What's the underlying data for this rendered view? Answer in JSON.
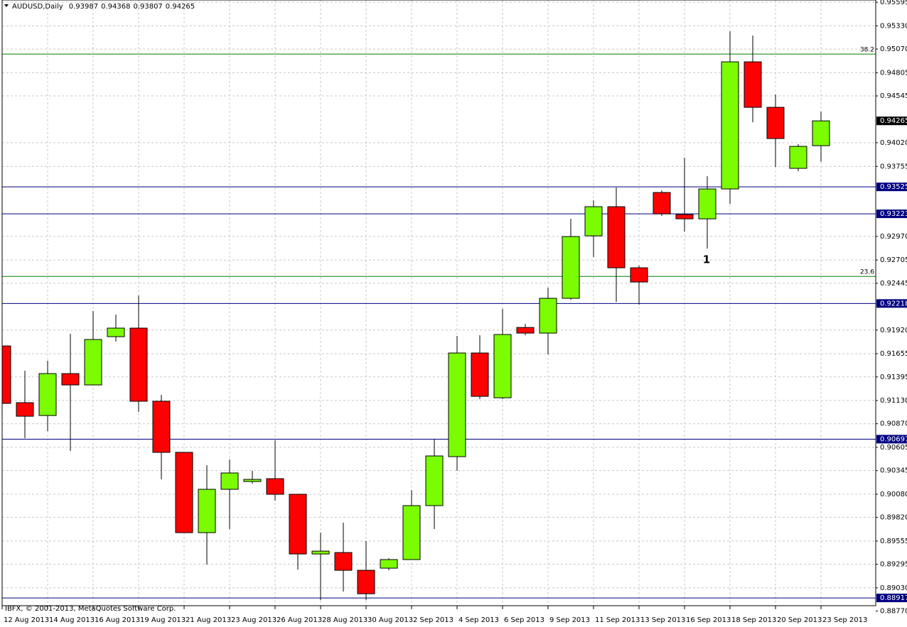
{
  "chart_data": {
    "type": "candlestick",
    "title": "AUDUSD,Daily",
    "header_values": [
      0.93987,
      0.94368,
      0.93807,
      0.94265
    ],
    "source": "IBFX, © 2001-2013, MetaQuotes Software Corp.",
    "annotation": "1",
    "categories": [
      "12 Aug 2013",
      null,
      "14 Aug 2013",
      null,
      "16 Aug 2013",
      null,
      "19 Aug 2013",
      null,
      "21 Aug 2013",
      null,
      "23 Aug 2013",
      null,
      "26 Aug 2013",
      null,
      "28 Aug 2013",
      null,
      "30 Aug 2013",
      null,
      "2 Sep 2013",
      null,
      "4 Sep 2013",
      null,
      "6 Sep 2013",
      null,
      "9 Sep 2013",
      null,
      "11 Sep 2013",
      null,
      "13 Sep 2013",
      null,
      "16 Sep 2013",
      null,
      "18 Sep 2013",
      null,
      "20 Sep 2013",
      null,
      "23 Sep 2013"
    ],
    "open": [
      0.91742,
      0.91106,
      0.90962,
      0.91432,
      0.91305,
      0.91846,
      0.91942,
      0.91122,
      0.90549,
      0.89649,
      0.90135,
      0.90222,
      0.90254,
      0.90079,
      0.8941,
      0.89426,
      0.89227,
      0.89251,
      0.89347,
      0.89952,
      0.90501,
      0.91663,
      0.91161,
      0.91949,
      0.91886,
      0.92276,
      0.92976,
      0.93303,
      0.92618,
      0.93462,
      0.93215,
      0.93167,
      0.93502,
      0.94927,
      0.94417,
      0.93733,
      0.93987
    ],
    "high": [
      0.92196,
      0.91464,
      0.91575,
      0.91878,
      0.92133,
      0.92093,
      0.92308,
      0.91193,
      0.90549,
      0.90405,
      0.90469,
      0.90342,
      0.90684,
      0.90079,
      0.89649,
      0.8976,
      0.89554,
      0.89362,
      0.90127,
      0.907,
      0.91854,
      0.91862,
      0.92156,
      0.91989,
      0.92395,
      0.93167,
      0.93374,
      0.93518,
      0.92642,
      0.93486,
      0.93852,
      0.93645,
      0.95269,
      0.95221,
      0.9456,
      0.94003,
      0.94368
    ],
    "low": [
      0.91082,
      0.90708,
      0.90787,
      0.90564,
      0.91305,
      0.9179,
      0.91002,
      0.90246,
      0.89649,
      0.89291,
      0.89689,
      0.90198,
      0.90007,
      0.89235,
      0.88893,
      0.88988,
      0.88893,
      0.89227,
      0.89347,
      0.89689,
      0.90342,
      0.91146,
      0.91146,
      0.91862,
      0.91647,
      0.9226,
      0.92738,
      0.92236,
      0.92204,
      0.93199,
      0.93024,
      0.92833,
      0.93335,
      0.9425,
      0.93748,
      0.93701,
      0.93807
    ],
    "close": [
      0.91098,
      0.90954,
      0.91432,
      0.91305,
      0.91814,
      0.91942,
      0.91122,
      0.90549,
      0.89649,
      0.90135,
      0.90318,
      0.90246,
      0.90079,
      0.8941,
      0.89442,
      0.89227,
      0.88964,
      0.89347,
      0.89952,
      0.90509,
      0.91663,
      0.91177,
      0.9187,
      0.91886,
      0.92276,
      0.92968,
      0.93303,
      0.92618,
      0.92459,
      0.93223,
      0.93167,
      0.93502,
      0.94927,
      0.94417,
      0.94067,
      0.93979,
      0.94265
    ],
    "up_color": "#7cfc00",
    "down_color": "#ff0000",
    "ylim": [
      0.8883,
      0.9562
    ],
    "yticks": [
      0.95595,
      {
        "value": 0.9533,
        "label": "0.95330"
      },
      {
        "value": 0.9507,
        "label": "0.95070"
      },
      0.94805,
      0.94545,
      {
        "value": 0.9402,
        "label": "0.94020"
      },
      0.93755,
      {
        "value": 0.9297,
        "label": "0.92970"
      },
      0.92705,
      0.92445,
      {
        "value": 0.9192,
        "label": "0.91920"
      },
      0.91655,
      0.91395,
      {
        "value": 0.9113,
        "label": "0.91130"
      },
      {
        "value": 0.9087,
        "label": "0.90870"
      },
      0.90605,
      0.90345,
      {
        "value": 0.9008,
        "label": "0.90080"
      },
      {
        "value": 0.8982,
        "label": "0.89820"
      },
      0.89555,
      0.89295,
      {
        "value": 0.8903,
        "label": "0.89030"
      },
      {
        "value": 0.8877,
        "label": "0.88770"
      }
    ],
    "grid": true,
    "last_price": 0.94265,
    "hlines": [
      0.93525,
      0.93223,
      0.92218,
      0.90697,
      0.88917
    ],
    "hline_color": "#000080",
    "fib_levels": [
      {
        "ratio": 38.2,
        "price": 0.95014
      },
      {
        "ratio": 23.6,
        "price": 0.92522
      }
    ],
    "fib_color": "#008000"
  }
}
